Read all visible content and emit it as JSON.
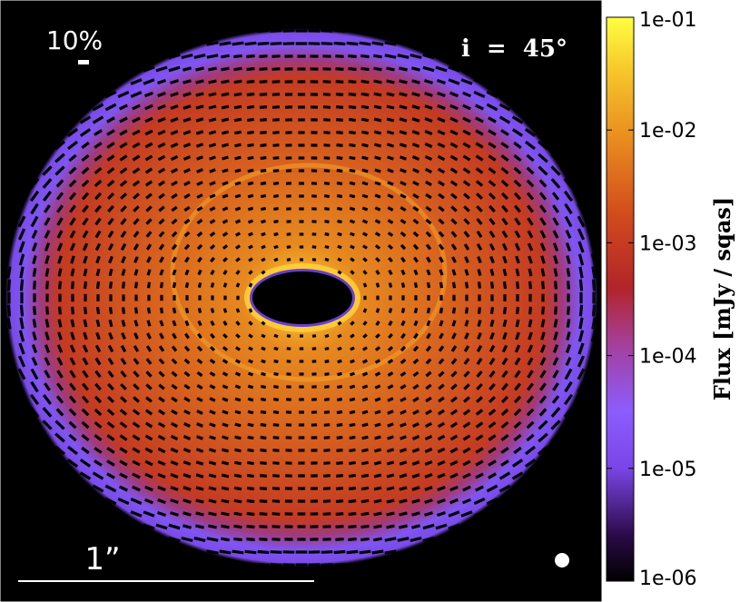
{
  "chart_data": {
    "type": "heatmap",
    "title": "",
    "description_kind": "polarized flux map of an inclined ring",
    "inclination_label": "i  =  45°",
    "polarization_scale_label": "10%",
    "length_scale_label": "1”",
    "colorbar": {
      "title": "Flux [mJy / sqas]",
      "scale": "log",
      "range": [
        1e-06,
        0.1
      ],
      "tick_labels": [
        "1e-01",
        "1e-02",
        "1e-03",
        "1e-04",
        "1e-05",
        "1e-06"
      ],
      "tick_values": [
        0.1,
        0.01,
        0.001,
        0.0001,
        1e-05,
        1e-06
      ],
      "colormap_stops": [
        "#000000",
        "#2b0a47",
        "#7a45e6",
        "#8c5cff",
        "#a53f9b",
        "#b3242a",
        "#d24b1c",
        "#e98a1f",
        "#f6c42a",
        "#ffff40"
      ]
    },
    "map_colors": {
      "background": "#000000",
      "outer_edge": "#7f55f0",
      "disk_body": "#c8401f",
      "inner_rim": "#f5b82b",
      "vector": "#000000",
      "beam": "#ffffff"
    }
  }
}
